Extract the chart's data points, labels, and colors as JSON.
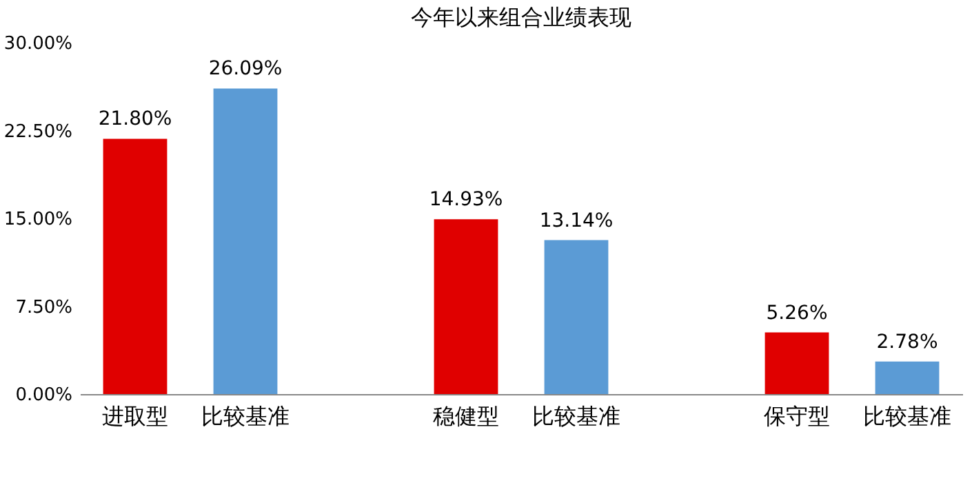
{
  "chart_data": {
    "type": "bar",
    "title": "今年以来组合业绩表现",
    "categories": [
      "进取型",
      "比较基准",
      null,
      "稳健型",
      "比较基准",
      null,
      "保守型",
      "比较基准"
    ],
    "values": [
      21.8,
      26.09,
      null,
      14.93,
      13.14,
      null,
      5.26,
      2.78
    ],
    "colors": [
      "#e00000",
      "#5b9bd5",
      "#e00000",
      "#e00000",
      "#5b9bd5",
      "#5b9bd5",
      "#e00000",
      "#5b9bd5"
    ],
    "value_labels": [
      "21.80%",
      "26.09%",
      null,
      "14.93%",
      "13.14%",
      null,
      "5.26%",
      "2.78%"
    ],
    "ylim": [
      0,
      30
    ],
    "yticks": [
      {
        "value": 0,
        "label": "0.00%"
      },
      {
        "value": 7.5,
        "label": "7.50%"
      },
      {
        "value": 15,
        "label": "15.00%"
      },
      {
        "value": 22.5,
        "label": "22.50%"
      },
      {
        "value": 30,
        "label": "30.00%"
      }
    ],
    "grid": false
  }
}
